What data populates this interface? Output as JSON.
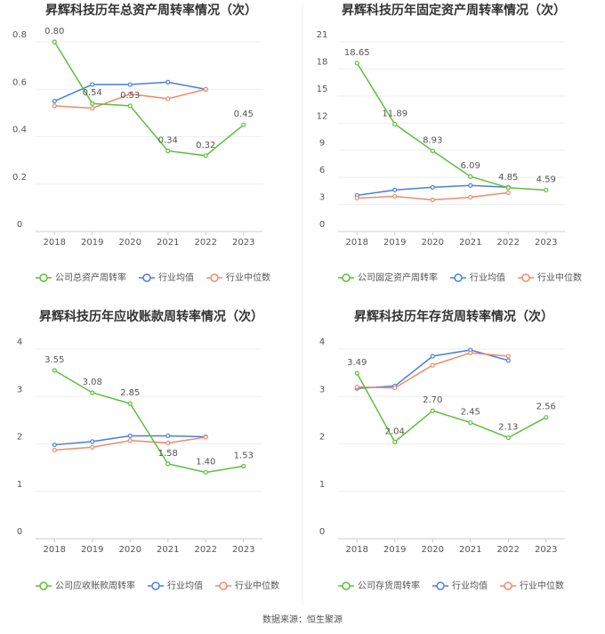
{
  "chart_data": [
    {
      "type": "line",
      "title": "昇辉科技历年总资产周转率情况（次）",
      "categories": [
        "2018",
        "2019",
        "2020",
        "2021",
        "2022",
        "2023"
      ],
      "series": [
        {
          "name": "公司总资产周转率",
          "color": "#5cbf3a",
          "values": [
            0.8,
            0.54,
            0.53,
            0.34,
            0.32,
            0.45
          ],
          "value_labels": [
            "0.80",
            "0.54",
            "0.53",
            "0.34",
            "0.32",
            "0.45"
          ]
        },
        {
          "name": "行业均值",
          "color": "#4a7fdc",
          "values": [
            0.55,
            0.62,
            0.62,
            0.63,
            0.6,
            null
          ]
        },
        {
          "name": "行业中位数",
          "color": "#f08a6b",
          "values": [
            0.53,
            0.52,
            0.58,
            0.56,
            0.6,
            null
          ]
        }
      ],
      "ylim": [
        0,
        0.8
      ],
      "yticks": [
        0,
        0.2,
        0.4,
        0.6,
        0.8
      ],
      "grid": true
    },
    {
      "type": "line",
      "title": "昇辉科技历年固定资产周转率情况（次）",
      "categories": [
        "2018",
        "2019",
        "2020",
        "2021",
        "2022",
        "2023"
      ],
      "series": [
        {
          "name": "公司固定资产周转率",
          "color": "#5cbf3a",
          "values": [
            18.65,
            11.89,
            8.93,
            6.09,
            4.85,
            4.59
          ]
        },
        {
          "name": "行业均值",
          "color": "#4a7fdc",
          "values": [
            4.0,
            4.6,
            4.9,
            5.1,
            4.9,
            null
          ]
        },
        {
          "name": "行业中位数",
          "color": "#f08a6b",
          "values": [
            3.7,
            3.9,
            3.5,
            3.8,
            4.3,
            null
          ]
        }
      ],
      "ylim": [
        0,
        21
      ],
      "yticks": [
        0,
        3,
        6,
        9,
        12,
        15,
        18,
        21
      ],
      "grid": true
    },
    {
      "type": "line",
      "title": "昇辉科技历年应收账款周转率情况（次）",
      "categories": [
        "2018",
        "2019",
        "2020",
        "2021",
        "2022",
        "2023"
      ],
      "series": [
        {
          "name": "公司应收账款周转率",
          "color": "#5cbf3a",
          "values": [
            3.55,
            3.08,
            2.85,
            1.58,
            1.4,
            1.53
          ],
          "value_labels": [
            "3.55",
            "3.08",
            "2.85",
            "1.58",
            "1.40",
            "1.53"
          ]
        },
        {
          "name": "行业均值",
          "color": "#4a7fdc",
          "values": [
            1.98,
            2.05,
            2.17,
            2.17,
            2.15,
            null
          ]
        },
        {
          "name": "行业中位数",
          "color": "#f08a6b",
          "values": [
            1.87,
            1.93,
            2.07,
            2.02,
            2.14,
            null
          ]
        }
      ],
      "ylim": [
        0,
        4
      ],
      "yticks": [
        0,
        1,
        2,
        3,
        4
      ],
      "grid": true
    },
    {
      "type": "line",
      "title": "昇辉科技历年存货周转率情况（次）",
      "categories": [
        "2018",
        "2019",
        "2020",
        "2021",
        "2022",
        "2023"
      ],
      "series": [
        {
          "name": "公司存货周转率",
          "color": "#5cbf3a",
          "values": [
            3.49,
            2.04,
            2.7,
            2.45,
            2.13,
            2.56
          ],
          "value_labels": [
            "3.49",
            "2.04",
            "2.70",
            "2.45",
            "2.13",
            "2.56"
          ]
        },
        {
          "name": "行业均值",
          "color": "#4a7fdc",
          "values": [
            3.17,
            3.22,
            3.85,
            3.98,
            3.76,
            null
          ]
        },
        {
          "name": "行业中位数",
          "color": "#f08a6b",
          "values": [
            3.2,
            3.18,
            3.66,
            3.92,
            3.85,
            null
          ]
        }
      ],
      "ylim": [
        0,
        4
      ],
      "yticks": [
        0,
        1,
        2,
        3,
        4
      ],
      "grid": true
    }
  ],
  "source": "数据来源：恒生聚源"
}
